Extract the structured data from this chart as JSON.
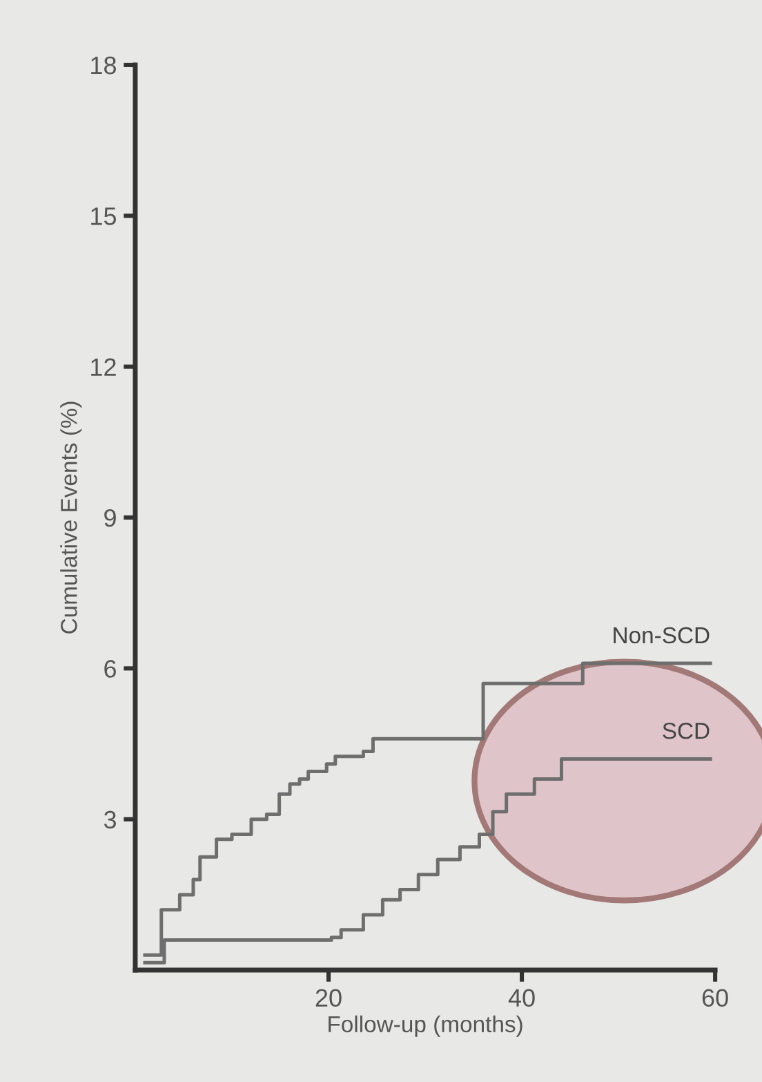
{
  "chart_data": {
    "type": "step",
    "xlabel": "Follow-up (months)",
    "ylabel": "Cumulative Events (%)",
    "xlim": [
      0,
      60
    ],
    "ylim": [
      0,
      18
    ],
    "xticks": [
      20,
      40,
      60
    ],
    "yticks": [
      3,
      6,
      9,
      12,
      15,
      18
    ],
    "grid": false,
    "legend": false,
    "marker": "none",
    "line_style": "solid",
    "series": [
      {
        "name": "Non-SCD",
        "color": "#6e6e6e",
        "x": [
          1,
          2.7,
          4.6,
          6,
          6.7,
          8.4,
          10,
          12,
          13.6,
          14.9,
          16,
          17,
          17.9,
          19.8,
          20.7,
          23.6,
          24.6,
          36,
          46.3,
          59.5
        ],
        "values": [
          0.3,
          1.2,
          1.5,
          1.8,
          2.25,
          2.6,
          2.7,
          3.0,
          3.1,
          3.5,
          3.7,
          3.8,
          3.95,
          4.1,
          4.25,
          4.35,
          4.6,
          5.7,
          6.1,
          6.1
        ]
      },
      {
        "name": "SCD",
        "color": "#6e6e6e",
        "x": [
          1,
          3,
          20.3,
          21.3,
          23.6,
          25.6,
          27.4,
          29.3,
          31.3,
          33.6,
          35.6,
          37,
          38.4,
          41.3,
          44.1,
          59.5
        ],
        "values": [
          0.15,
          0.6,
          0.65,
          0.8,
          1.1,
          1.4,
          1.6,
          1.9,
          2.2,
          2.45,
          2.7,
          3.15,
          3.5,
          3.8,
          4.2,
          4.2
        ]
      }
    ]
  }
}
